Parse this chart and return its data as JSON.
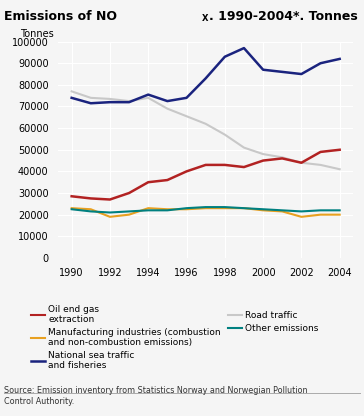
{
  "title": "Emissions of NO",
  "title_sub": "X",
  "title_rest": ". 1990-2004*. Tonnes",
  "ylabel": "Tonnes",
  "years": [
    1990,
    1991,
    1992,
    1993,
    1994,
    1995,
    1996,
    1997,
    1998,
    1999,
    2000,
    2001,
    2002,
    2003,
    2004
  ],
  "oil_end_gas": [
    28500,
    27500,
    27000,
    30000,
    35000,
    36000,
    40000,
    43000,
    43000,
    42000,
    45000,
    46000,
    44000,
    49000,
    50000
  ],
  "manufacturing": [
    23000,
    22500,
    19000,
    20000,
    23000,
    22500,
    22500,
    23000,
    23000,
    23000,
    22000,
    21500,
    19000,
    20000,
    20000
  ],
  "national_sea": [
    74000,
    71500,
    72000,
    72000,
    75500,
    72500,
    74000,
    83000,
    93000,
    97000,
    87000,
    86000,
    85000,
    90000,
    92000
  ],
  "road_traffic": [
    77000,
    74000,
    73500,
    72500,
    74000,
    69000,
    65500,
    62000,
    57000,
    51000,
    48000,
    46500,
    44000,
    43000,
    41000
  ],
  "other_emissions": [
    22500,
    21500,
    21000,
    21500,
    22000,
    22000,
    23000,
    23500,
    23500,
    23000,
    22500,
    22000,
    21500,
    22000,
    22000
  ],
  "colors": {
    "oil_end_gas": "#b22222",
    "manufacturing": "#e8a020",
    "national_sea": "#1a237e",
    "road_traffic": "#c8c8c8",
    "other_emissions": "#008080"
  },
  "legend": [
    {
      "label": "Oil end gas\nextraction",
      "color": "#b22222"
    },
    {
      "label": "Manufacturing industries (combustion\nand non-combustion emissions)",
      "color": "#e8a020"
    },
    {
      "label": "National sea traffic\nand fisheries",
      "color": "#1a237e"
    },
    {
      "label": "Road traffic",
      "color": "#c8c8c8"
    },
    {
      "label": "Other emissions",
      "color": "#008080"
    }
  ],
  "source": "Source: Emission inventory from Statistics Norway and Norwegian Pollution\nControl Authority.",
  "ylim": [
    0,
    100000
  ],
  "yticks": [
    0,
    10000,
    20000,
    30000,
    40000,
    50000,
    60000,
    70000,
    80000,
    90000,
    100000
  ],
  "xticks": [
    1990,
    1992,
    1994,
    1996,
    1998,
    2000,
    2002,
    2004
  ],
  "bg_color": "#f5f5f5",
  "plot_bg": "#f5f5f5"
}
